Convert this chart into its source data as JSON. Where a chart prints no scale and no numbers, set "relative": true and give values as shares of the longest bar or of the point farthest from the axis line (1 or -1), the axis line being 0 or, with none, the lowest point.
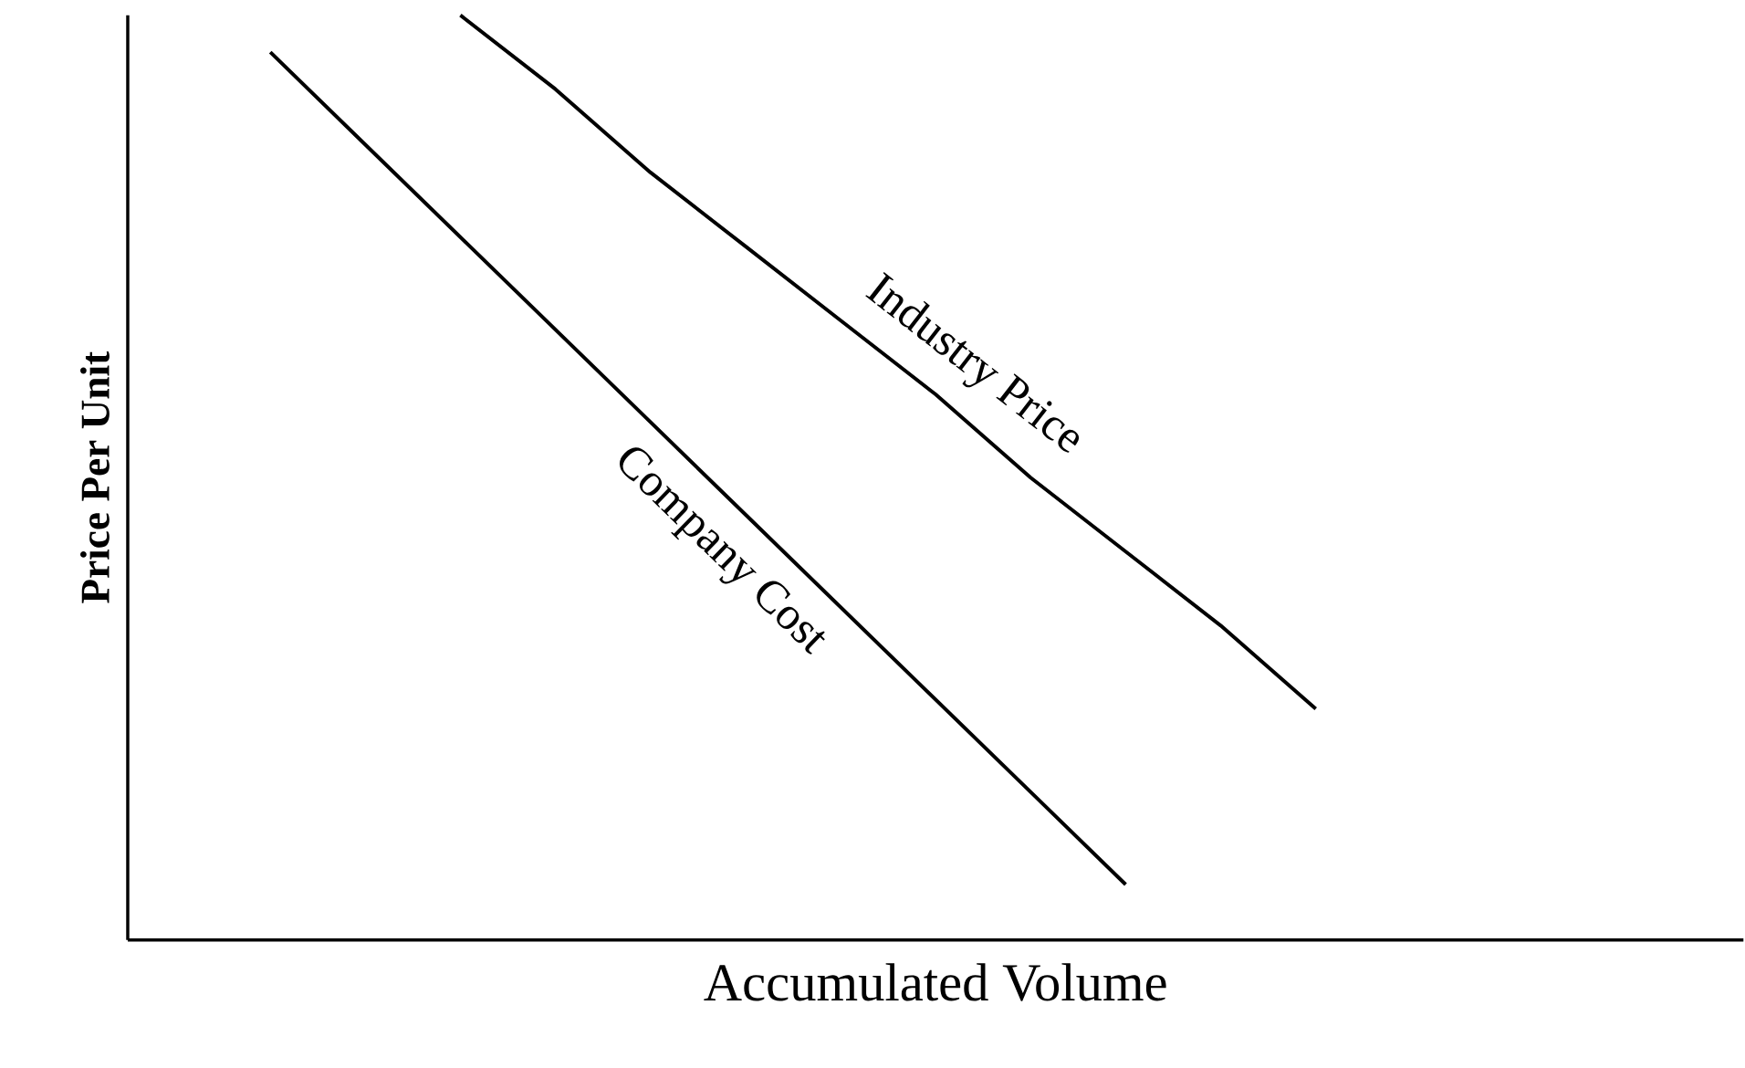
{
  "chart_data": {
    "type": "line",
    "relative": true,
    "xlabel": "Accumulated Volume",
    "ylabel": "Price Per Unit",
    "categories": [
      null,
      null,
      null,
      null,
      null,
      null,
      null,
      null,
      null,
      null,
      null,
      null,
      null,
      null,
      null,
      null,
      null
    ],
    "series": [
      {
        "name": "Industry Price",
        "color": "#000000",
        "values": [
          null,
          null,
          null,
          1.0,
          0.92,
          0.83,
          0.75,
          0.67,
          0.59,
          0.5,
          0.42,
          0.34,
          0.25,
          null,
          null,
          null,
          null
        ]
      },
      {
        "name": "Company Cost",
        "color": "#000000",
        "values": [
          null,
          0.96,
          0.86,
          0.76,
          0.66,
          0.56,
          0.46,
          0.36,
          0.26,
          0.16,
          0.06,
          null,
          null,
          null,
          null,
          null,
          null
        ]
      }
    ]
  }
}
